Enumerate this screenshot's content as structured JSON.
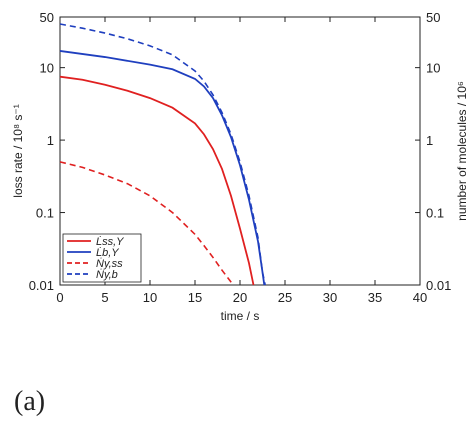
{
  "chart_data": {
    "type": "line",
    "x_label": "time / s",
    "y_label": "loss rate / 10⁸ s⁻¹",
    "y2_label": "number of molecules / 10⁶",
    "xlim": [
      0,
      40
    ],
    "xticks": [
      0,
      5,
      10,
      15,
      20,
      25,
      30,
      35,
      40
    ],
    "ylim": [
      0.01,
      50
    ],
    "yticks": [
      0.01,
      0.1,
      1,
      10,
      50
    ],
    "y2lim": [
      0.01,
      50
    ],
    "y2ticks": [
      0.01,
      0.1,
      1,
      10,
      50
    ],
    "log_scale": true,
    "legend": "lower left",
    "series": [
      {
        "name": "L̇ss,Y",
        "color": "#e02020",
        "dash": false,
        "x": [
          0,
          2.5,
          5,
          7.5,
          10,
          12.5,
          15,
          16,
          17,
          18,
          19,
          20,
          21,
          21.5
        ],
        "values": [
          7.5,
          6.8,
          5.8,
          4.8,
          3.8,
          2.8,
          1.7,
          1.2,
          0.75,
          0.4,
          0.17,
          0.06,
          0.02,
          0.01
        ]
      },
      {
        "name": "L̇b,Y",
        "color": "#1f3fbf",
        "dash": false,
        "x": [
          0,
          5,
          10,
          12.5,
          15,
          16,
          17,
          18,
          19,
          20,
          21,
          22,
          22.5,
          22.7
        ],
        "values": [
          17,
          14,
          11,
          9.5,
          7,
          5.5,
          3.8,
          2.2,
          1.1,
          0.45,
          0.15,
          0.04,
          0.015,
          0.01
        ]
      },
      {
        "name": "Ṅy,ss",
        "color": "#e02020",
        "dash": true,
        "axis": "y2",
        "x": [
          0,
          2.5,
          5,
          7.5,
          10,
          12.5,
          15,
          16,
          17,
          18,
          19,
          19.3
        ],
        "values": [
          0.5,
          0.42,
          0.33,
          0.25,
          0.17,
          0.1,
          0.05,
          0.035,
          0.024,
          0.016,
          0.011,
          0.01
        ]
      },
      {
        "name": "Ṅy,b",
        "color": "#1f3fbf",
        "dash": true,
        "axis": "y2",
        "x": [
          0,
          2.5,
          5,
          7.5,
          10,
          12.5,
          15,
          16,
          17,
          18,
          19,
          20,
          21,
          22,
          22.5,
          22.8
        ],
        "values": [
          40,
          35,
          30,
          25,
          20,
          15,
          9,
          6.5,
          4.2,
          2.4,
          1.2,
          0.5,
          0.17,
          0.045,
          0.015,
          0.01
        ]
      }
    ]
  },
  "panel_label": "(a)"
}
